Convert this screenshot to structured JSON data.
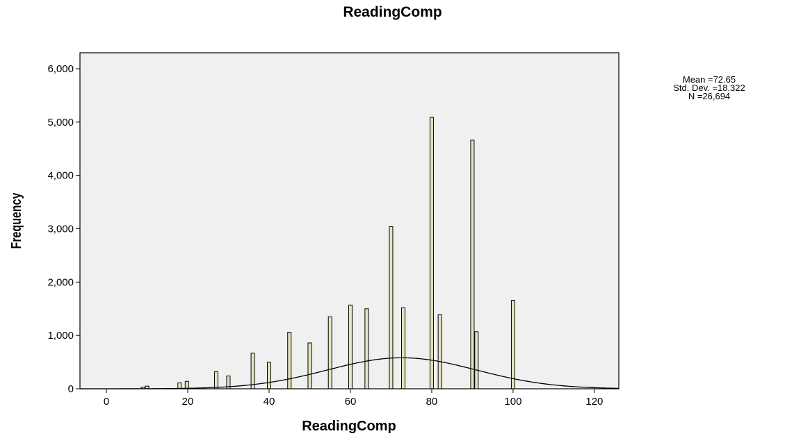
{
  "chart_data": {
    "type": "bar",
    "title": "ReadingComp",
    "xlabel": "ReadingComp",
    "ylabel": "Frequency",
    "xlim": [
      -6.5,
      126
    ],
    "ylim": [
      0,
      6300
    ],
    "x_ticks": [
      0,
      20,
      40,
      60,
      80,
      100,
      120
    ],
    "x_tick_labels": [
      "0",
      "20",
      "40",
      "60",
      "80",
      "100",
      "120"
    ],
    "y_ticks": [
      0,
      1000,
      2000,
      3000,
      4000,
      5000,
      6000
    ],
    "y_tick_labels": [
      "0",
      "1,000",
      "2,000",
      "3,000",
      "4,000",
      "5,000",
      "6,000"
    ],
    "grid": false,
    "bar_color": "#e6e3c0",
    "plot_background": "#f0f0f0",
    "bars": [
      {
        "x": 9,
        "y": 30
      },
      {
        "x": 10,
        "y": 50
      },
      {
        "x": 18,
        "y": 110
      },
      {
        "x": 19.8,
        "y": 140
      },
      {
        "x": 27,
        "y": 320
      },
      {
        "x": 30,
        "y": 240
      },
      {
        "x": 36,
        "y": 670
      },
      {
        "x": 40,
        "y": 500
      },
      {
        "x": 45,
        "y": 1060
      },
      {
        "x": 50,
        "y": 860
      },
      {
        "x": 55,
        "y": 1350
      },
      {
        "x": 60,
        "y": 1570
      },
      {
        "x": 64,
        "y": 1500
      },
      {
        "x": 70,
        "y": 3040
      },
      {
        "x": 73,
        "y": 1520
      },
      {
        "x": 80,
        "y": 5090
      },
      {
        "x": 82,
        "y": 1390
      },
      {
        "x": 90,
        "y": 4660
      },
      {
        "x": 91,
        "y": 1070
      },
      {
        "x": 100,
        "y": 1660
      }
    ],
    "normal_curve": {
      "mean": 72.65,
      "std_dev": 18.322
    },
    "stats": {
      "mean": "Mean =72.65",
      "std_dev": "Std. Dev. =18.322",
      "n": "N =26,694"
    }
  }
}
